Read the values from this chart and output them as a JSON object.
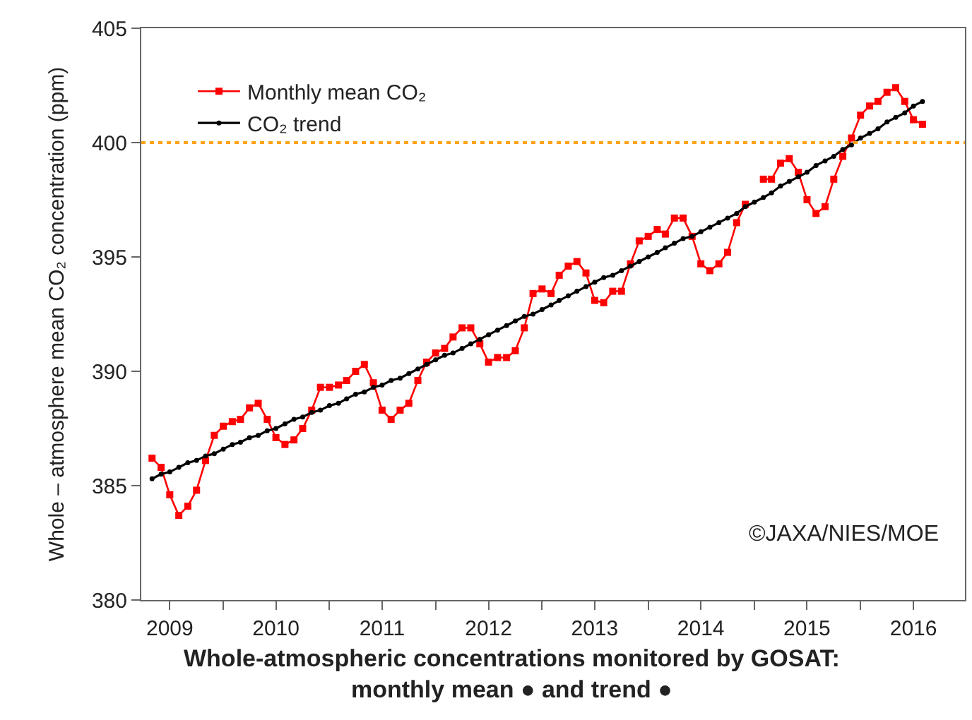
{
  "chart_data": {
    "type": "line",
    "title": "Whole-atmospheric concentrations monitored by GOSAT:\nmonthly mean ● and trend ●",
    "ylabel": "Whole – atmosphere mean CO₂ concentration (ppm)",
    "x": [
      "2009-05",
      "2009-06",
      "2009-07",
      "2009-08",
      "2009-09",
      "2009-10",
      "2009-11",
      "2009-12",
      "2010-01",
      "2010-02",
      "2010-03",
      "2010-04",
      "2010-05",
      "2010-06",
      "2010-07",
      "2010-08",
      "2010-09",
      "2010-10",
      "2010-11",
      "2010-12",
      "2011-01",
      "2011-02",
      "2011-03",
      "2011-04",
      "2011-05",
      "2011-06",
      "2011-07",
      "2011-08",
      "2011-09",
      "2011-10",
      "2011-11",
      "2011-12",
      "2012-01",
      "2012-02",
      "2012-03",
      "2012-04",
      "2012-05",
      "2012-06",
      "2012-07",
      "2012-08",
      "2012-09",
      "2012-10",
      "2012-11",
      "2012-12",
      "2013-01",
      "2013-02",
      "2013-03",
      "2013-04",
      "2013-05",
      "2013-06",
      "2013-07",
      "2013-08",
      "2013-09",
      "2013-10",
      "2013-11",
      "2013-12",
      "2014-01",
      "2014-02",
      "2014-03",
      "2014-04",
      "2014-05",
      "2014-06",
      "2014-07",
      "2014-08",
      "2014-09",
      "2014-10",
      "2014-11",
      "2014-12",
      "2015-01",
      "2015-02",
      "2015-03",
      "2015-04",
      "2015-05",
      "2015-06",
      "2015-07",
      "2015-08",
      "2015-09",
      "2015-10",
      "2015-11",
      "2015-12",
      "2016-01",
      "2016-02",
      "2016-03",
      "2016-04",
      "2016-05",
      "2016-06",
      "2016-07",
      "2016-08"
    ],
    "series": [
      {
        "name": "Monthly mean CO₂",
        "color": "#ff0000",
        "marker": "square",
        "values": [
          386.2,
          385.8,
          384.6,
          383.7,
          384.1,
          384.8,
          386.1,
          387.2,
          387.6,
          387.8,
          387.9,
          388.4,
          388.6,
          387.9,
          387.1,
          386.8,
          387.0,
          387.5,
          388.3,
          389.3,
          389.3,
          389.4,
          389.6,
          390.0,
          390.3,
          389.5,
          388.3,
          387.9,
          388.3,
          388.6,
          389.6,
          390.4,
          390.8,
          391.0,
          391.5,
          391.9,
          391.9,
          391.2,
          390.4,
          390.6,
          390.6,
          390.9,
          391.9,
          393.4,
          393.6,
          393.4,
          394.2,
          394.6,
          394.8,
          394.3,
          393.1,
          393.0,
          393.5,
          393.5,
          394.7,
          395.7,
          395.9,
          396.2,
          396.0,
          396.7,
          396.7,
          395.9,
          394.7,
          394.4,
          394.7,
          395.2,
          396.5,
          397.3,
          null,
          398.4,
          398.4,
          399.1,
          399.3,
          398.7,
          397.5,
          396.9,
          397.2,
          398.4,
          399.4,
          400.2,
          401.2,
          401.6,
          401.8,
          402.2,
          402.4,
          401.8,
          401.0,
          400.8
        ]
      },
      {
        "name": "CO₂ trend",
        "color": "#000000",
        "marker": "circle",
        "values": [
          385.3,
          385.5,
          385.6,
          385.8,
          386.0,
          386.1,
          386.3,
          386.4,
          386.6,
          386.8,
          386.9,
          387.1,
          387.2,
          387.4,
          387.5,
          387.7,
          387.9,
          388.0,
          388.2,
          388.3,
          388.5,
          388.6,
          388.8,
          389.0,
          389.1,
          389.3,
          389.4,
          389.6,
          389.7,
          389.9,
          390.1,
          390.3,
          390.5,
          390.7,
          390.8,
          391.0,
          391.2,
          391.4,
          391.6,
          391.8,
          392.0,
          392.2,
          392.4,
          392.5,
          392.7,
          392.9,
          393.1,
          393.3,
          393.5,
          393.7,
          393.9,
          394.1,
          394.2,
          394.4,
          394.6,
          394.8,
          395.0,
          395.2,
          395.4,
          395.6,
          395.8,
          395.9,
          396.1,
          396.3,
          396.5,
          396.7,
          396.9,
          397.2,
          397.4,
          397.6,
          397.8,
          398.1,
          398.3,
          398.5,
          398.7,
          399.0,
          399.2,
          399.4,
          399.7,
          399.9,
          400.2,
          400.4,
          400.6,
          400.9,
          401.1,
          401.3,
          401.6,
          401.8
        ]
      }
    ],
    "xlim": [
      "2009-03-25",
      "2016-12-25"
    ],
    "xticks": [
      {
        "value": "2009-07-01",
        "label": "2009"
      },
      {
        "value": "2010-07-01",
        "label": "2010"
      },
      {
        "value": "2011-07-01",
        "label": "2011"
      },
      {
        "value": "2012-07-01",
        "label": "2012"
      },
      {
        "value": "2013-07-01",
        "label": "2013"
      },
      {
        "value": "2014-07-01",
        "label": "2014"
      },
      {
        "value": "2015-07-01",
        "label": "2015"
      },
      {
        "value": "2016-07-01",
        "label": "2016"
      },
      {
        "value": "2010-01-01",
        "label": null
      },
      {
        "value": "2011-01-01",
        "label": null
      },
      {
        "value": "2012-01-01",
        "label": null
      },
      {
        "value": "2013-01-01",
        "label": null
      },
      {
        "value": "2014-01-01",
        "label": null
      },
      {
        "value": "2015-01-01",
        "label": null
      },
      {
        "value": "2016-01-01",
        "label": null
      }
    ],
    "ylim": [
      380,
      405
    ],
    "yticks": [
      380,
      385,
      390,
      395,
      400,
      405
    ],
    "ref_lines": [
      {
        "axis": "y",
        "value": 400,
        "color": "#ffa31a",
        "line_style": "dotted"
      }
    ],
    "annotations": [
      "©JAXA/NIES/MOE"
    ],
    "legend": "top left"
  }
}
